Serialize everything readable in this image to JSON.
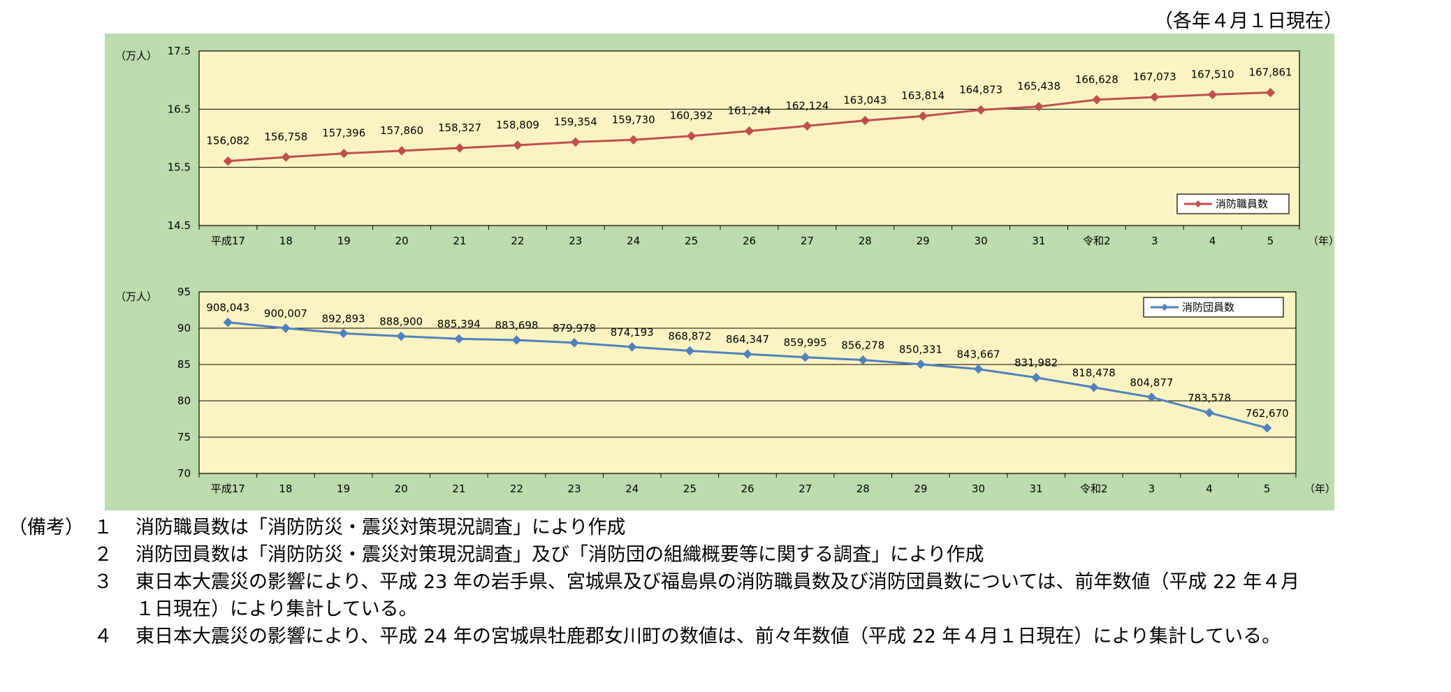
{
  "date_note": "（各年４月１日現在）",
  "chart_data": [
    {
      "type": "line",
      "series": [
        {
          "name": "消防職員数",
          "values": [
            156082,
            156758,
            157396,
            157860,
            158327,
            158809,
            159354,
            159730,
            160392,
            161244,
            162124,
            163043,
            163814,
            164873,
            165438,
            166628,
            167073,
            167510,
            167861
          ],
          "color": "#c0504d"
        }
      ],
      "categories": [
        "平成17",
        "18",
        "19",
        "20",
        "21",
        "22",
        "23",
        "24",
        "25",
        "26",
        "27",
        "28",
        "29",
        "30",
        "31",
        "令和2",
        "3",
        "4",
        "5"
      ],
      "data_labels": [
        "156,082",
        "156,758",
        "157,396",
        "157,860",
        "158,327",
        "158,809",
        "159,354",
        "159,730",
        "160,392",
        "161,244",
        "162,124",
        "163,043",
        "163,814",
        "164,873",
        "165,438",
        "166,628",
        "167,073",
        "167,510",
        "167,861"
      ],
      "y_unit_label": "（万人）",
      "x_unit_label": "（年）",
      "ylim": [
        14.5,
        17.5
      ],
      "yticks": [
        "14.5",
        "15.5",
        "16.5",
        "17.5"
      ],
      "scale_divisor": 10000,
      "legend_position": "bottom-right",
      "grid": true
    },
    {
      "type": "line",
      "series": [
        {
          "name": "消防団員数",
          "values": [
            908043,
            900007,
            892893,
            888900,
            885394,
            883698,
            879978,
            874193,
            868872,
            864347,
            859995,
            856278,
            850331,
            843667,
            831982,
            818478,
            804877,
            783578,
            762670
          ],
          "color": "#4f81bd"
        }
      ],
      "categories": [
        "平成17",
        "18",
        "19",
        "20",
        "21",
        "22",
        "23",
        "24",
        "25",
        "26",
        "27",
        "28",
        "29",
        "30",
        "31",
        "令和2",
        "3",
        "4",
        "5"
      ],
      "data_labels": [
        "908,043",
        "900,007",
        "892,893",
        "888,900",
        "885,394",
        "883,698",
        "879,978",
        "874,193",
        "868,872",
        "864,347",
        "859,995",
        "856,278",
        "850,331",
        "843,667",
        "831,982",
        "818,478",
        "804,877",
        "783,578",
        "762,670"
      ],
      "y_unit_label": "（万人）",
      "x_unit_label": "（年）",
      "ylim": [
        70,
        95
      ],
      "yticks": [
        "70",
        "75",
        "80",
        "85",
        "90",
        "95"
      ],
      "scale_divisor": 10000,
      "legend_position": "top-right",
      "grid": true
    }
  ],
  "notes": {
    "heading": "（備考）",
    "items": [
      {
        "num": "１",
        "text": "消防職員数は「消防防災・震災対策現況調査」により作成"
      },
      {
        "num": "２",
        "text": "消防団員数は「消防防災・震災対策現況調査」及び「消防団の組織概要等に関する調査」により作成"
      },
      {
        "num": "３",
        "text": "東日本大震災の影響により、平成 23 年の岩手県、宮城県及び福島県の消防職員数及び消防団員数については、前年数値（平成 22 年４月",
        "cont": "１日現在）により集計している。"
      },
      {
        "num": "４",
        "text": "東日本大震災の影響により、平成 24 年の宮城県牡鹿郡女川町の数値は、前々年数値（平成 22 年４月１日現在）により集計している。"
      }
    ]
  }
}
